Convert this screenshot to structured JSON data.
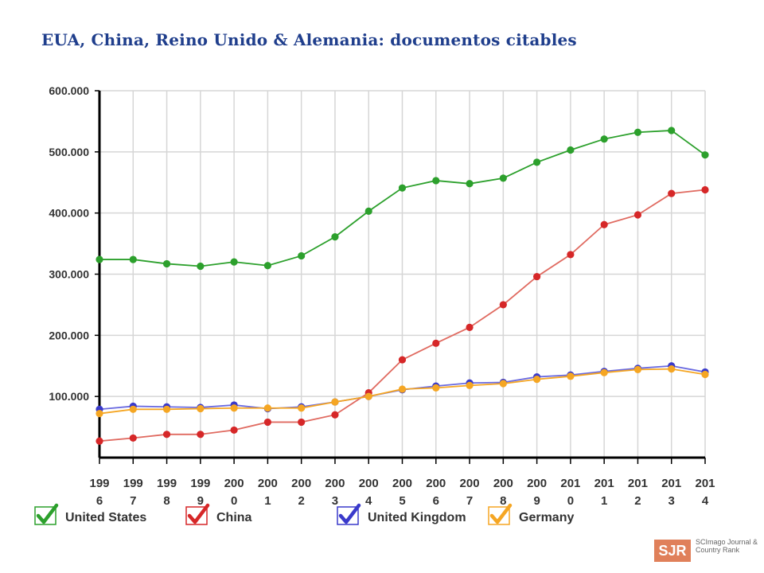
{
  "slide": {
    "title": "EUA, China, Reino Unido & Alemania: documentos citables"
  },
  "logo": {
    "mark": "SJR",
    "text": "SCImago Journal & Country Rank"
  },
  "chart_data": {
    "type": "line",
    "x": [
      "1996",
      "1997",
      "1998",
      "1999",
      "2000",
      "2001",
      "2002",
      "2003",
      "2004",
      "2005",
      "2006",
      "2007",
      "2008",
      "2009",
      "2010",
      "2011",
      "2012",
      "2013",
      "2014"
    ],
    "x_tick_labels": [
      [
        "199",
        "6"
      ],
      [
        "199",
        "7"
      ],
      [
        "199",
        "8"
      ],
      [
        "199",
        "9"
      ],
      [
        "200",
        "0"
      ],
      [
        "200",
        "1"
      ],
      [
        "200",
        "2"
      ],
      [
        "200",
        "3"
      ],
      [
        "200",
        "4"
      ],
      [
        "200",
        "5"
      ],
      [
        "200",
        "6"
      ],
      [
        "200",
        "7"
      ],
      [
        "200",
        "8"
      ],
      [
        "200",
        "9"
      ],
      [
        "201",
        "0"
      ],
      [
        "201",
        "1"
      ],
      [
        "201",
        "2"
      ],
      [
        "201",
        "3"
      ],
      [
        "201",
        "4"
      ]
    ],
    "ylim": [
      0,
      600000
    ],
    "y_ticks": [
      100000,
      200000,
      300000,
      400000,
      500000,
      600000
    ],
    "y_tick_labels": [
      "100.000",
      "200.000",
      "300.000",
      "400.000",
      "500.000",
      "600.000"
    ],
    "grid": true,
    "legend_position": "bottom",
    "series": [
      {
        "name": "United States",
        "color": "#2ca02c",
        "line_color": "#2ca02c",
        "values": [
          324000,
          324000,
          317000,
          313000,
          320000,
          314000,
          330000,
          361000,
          403000,
          441000,
          453000,
          448000,
          457000,
          483000,
          503000,
          521000,
          532000,
          535000,
          495000
        ]
      },
      {
        "name": "China",
        "color": "#d62728",
        "line_color": "#e06a60",
        "values": [
          27000,
          32000,
          38000,
          38000,
          45000,
          58000,
          58000,
          70000,
          106000,
          160000,
          187000,
          213000,
          250000,
          296000,
          332000,
          381000,
          397000,
          432000,
          438000
        ]
      },
      {
        "name": "United Kingdom",
        "color": "#3a3acb",
        "line_color": "#6a6ae0",
        "values": [
          79000,
          84000,
          83000,
          82000,
          86000,
          80000,
          83000,
          91000,
          100000,
          111000,
          117000,
          122000,
          123000,
          132000,
          135000,
          141000,
          146000,
          150000,
          140000
        ]
      },
      {
        "name": "Germany",
        "color": "#f5a623",
        "line_color": "#f5a623",
        "values": [
          72000,
          79000,
          79000,
          80000,
          81000,
          81000,
          81000,
          91000,
          100000,
          112000,
          114000,
          118000,
          121000,
          128000,
          133000,
          139000,
          144000,
          145000,
          136000
        ]
      }
    ]
  }
}
